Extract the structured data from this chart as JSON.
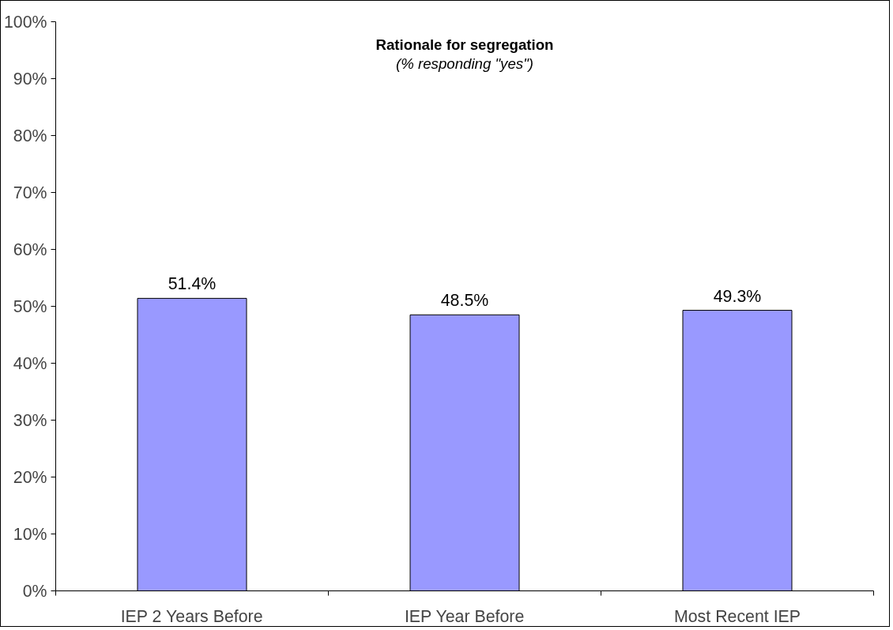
{
  "chart_data": {
    "type": "bar",
    "title": "Rationale for segregation",
    "subtitle": "(% responding \"yes\")",
    "categories": [
      "IEP 2 Years Before",
      "IEP Year Before",
      "Most Recent IEP"
    ],
    "values": [
      51.4,
      48.5,
      49.3
    ],
    "value_labels": [
      "51.4%",
      "48.5%",
      "49.3%"
    ],
    "color": "#9999ff",
    "ylim": [
      0,
      100
    ],
    "yticks": [
      {
        "value": 0,
        "label": "0%"
      },
      {
        "value": 10,
        "label": "10%"
      },
      {
        "value": 20,
        "label": "20%"
      },
      {
        "value": 30,
        "label": "30%"
      },
      {
        "value": 40,
        "label": "40%"
      },
      {
        "value": 50,
        "label": "50%"
      },
      {
        "value": 60,
        "label": "60%"
      },
      {
        "value": 70,
        "label": "70%"
      },
      {
        "value": 80,
        "label": "80%"
      },
      {
        "value": 90,
        "label": "90%"
      },
      {
        "value": 100,
        "label": "100%"
      }
    ],
    "grid": false
  }
}
